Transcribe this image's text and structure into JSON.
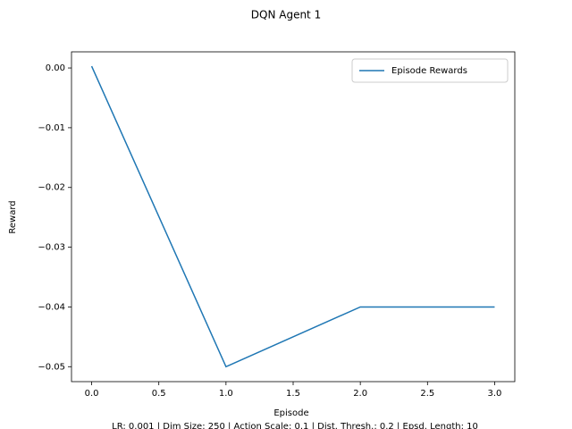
{
  "chart_data": {
    "type": "line",
    "title": "DQN Agent 1",
    "x_label": "Episode",
    "y_label": "Reward",
    "footer": "LR: 0.001 | Dim Size: 250 | Action Scale: 0.1 | Dist. Thresh.: 0.2 | Epsd. Length: 10",
    "x": [
      0,
      1,
      2,
      3
    ],
    "series": [
      {
        "name": "Episode Rewards",
        "color": "#1f77b4",
        "values": [
          0.0003,
          -0.05,
          -0.04,
          -0.04
        ]
      }
    ],
    "xlim": [
      -0.15,
      3.15
    ],
    "xticks": [
      {
        "value": 0,
        "label": "0.0"
      },
      {
        "value": 0.5,
        "label": "0.5"
      },
      {
        "value": 1,
        "label": "1.0"
      },
      {
        "value": 1.5,
        "label": "1.5"
      },
      {
        "value": 2,
        "label": "2.0"
      },
      {
        "value": 2.5,
        "label": "2.5"
      },
      {
        "value": 3,
        "label": "3.0"
      }
    ],
    "ylim": [
      -0.0525,
      0.0027
    ],
    "yticks": [
      {
        "value": 0,
        "label": "0.00"
      },
      {
        "value": -0.01,
        "label": "−0.01"
      },
      {
        "value": -0.02,
        "label": "−0.02"
      },
      {
        "value": -0.03,
        "label": "−0.03"
      },
      {
        "value": -0.04,
        "label": "−0.04"
      },
      {
        "value": -0.05,
        "label": "−0.05"
      }
    ],
    "grid": false,
    "legend": "upper right"
  }
}
